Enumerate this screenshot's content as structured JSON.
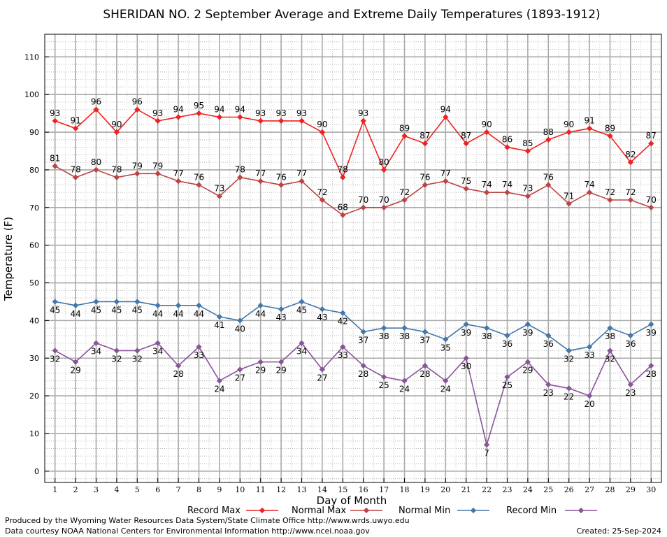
{
  "chart_data": {
    "type": "line",
    "title": "SHERIDAN NO. 2 September Average and Extreme Daily Temperatures (1893-1912)",
    "xlabel": "Day of Month",
    "ylabel": "Temperature (F)",
    "x": [
      1,
      2,
      3,
      4,
      5,
      6,
      7,
      8,
      9,
      10,
      11,
      12,
      13,
      14,
      15,
      16,
      17,
      18,
      19,
      20,
      21,
      22,
      23,
      24,
      25,
      26,
      27,
      28,
      29,
      30
    ],
    "xlim": [
      0.5,
      30.5
    ],
    "ylim": [
      -3,
      116
    ],
    "yticks": [
      0,
      10,
      20,
      30,
      40,
      50,
      60,
      70,
      80,
      90,
      100,
      110
    ],
    "grid": true,
    "legend_position": "bottom",
    "series": [
      {
        "name": "Record Max",
        "color": "#ee2222",
        "label_position": "above",
        "values": [
          93,
          91,
          96,
          90,
          96,
          93,
          94,
          95,
          94,
          94,
          93,
          93,
          93,
          90,
          78,
          93,
          80,
          89,
          87,
          94,
          87,
          90,
          86,
          85,
          88,
          90,
          91,
          89,
          82,
          87
        ]
      },
      {
        "name": "Normal Max",
        "color": "#bb4444",
        "label_position": "above",
        "values": [
          81,
          78,
          80,
          78,
          79,
          79,
          77,
          76,
          73,
          78,
          77,
          76,
          77,
          72,
          68,
          70,
          70,
          72,
          76,
          77,
          75,
          74,
          74,
          73,
          76,
          71,
          74,
          72,
          72,
          70
        ]
      },
      {
        "name": "Normal Min",
        "color": "#4477aa",
        "label_position": "below",
        "values": [
          45,
          44,
          45,
          45,
          45,
          44,
          44,
          44,
          41,
          40,
          44,
          43,
          45,
          43,
          42,
          37,
          38,
          38,
          37,
          35,
          39,
          38,
          36,
          39,
          36,
          32,
          33,
          38,
          36,
          39
        ]
      },
      {
        "name": "Record Min",
        "color": "#885599",
        "label_position": "below",
        "values": [
          32,
          29,
          34,
          32,
          32,
          34,
          28,
          33,
          24,
          27,
          29,
          29,
          34,
          27,
          33,
          28,
          25,
          24,
          28,
          24,
          30,
          7,
          25,
          29,
          23,
          22,
          20,
          32,
          23,
          28
        ]
      }
    ]
  },
  "footer": {
    "credit_line1": "Produced by the Wyoming Water Resources Data System/State Climate Office http://www.wrds.uwyo.edu",
    "credit_line2": "Data courtesy NOAA National Centers for Environmental Information http://www.ncei.noaa.gov",
    "created": "Created:  25-Sep-2024"
  }
}
